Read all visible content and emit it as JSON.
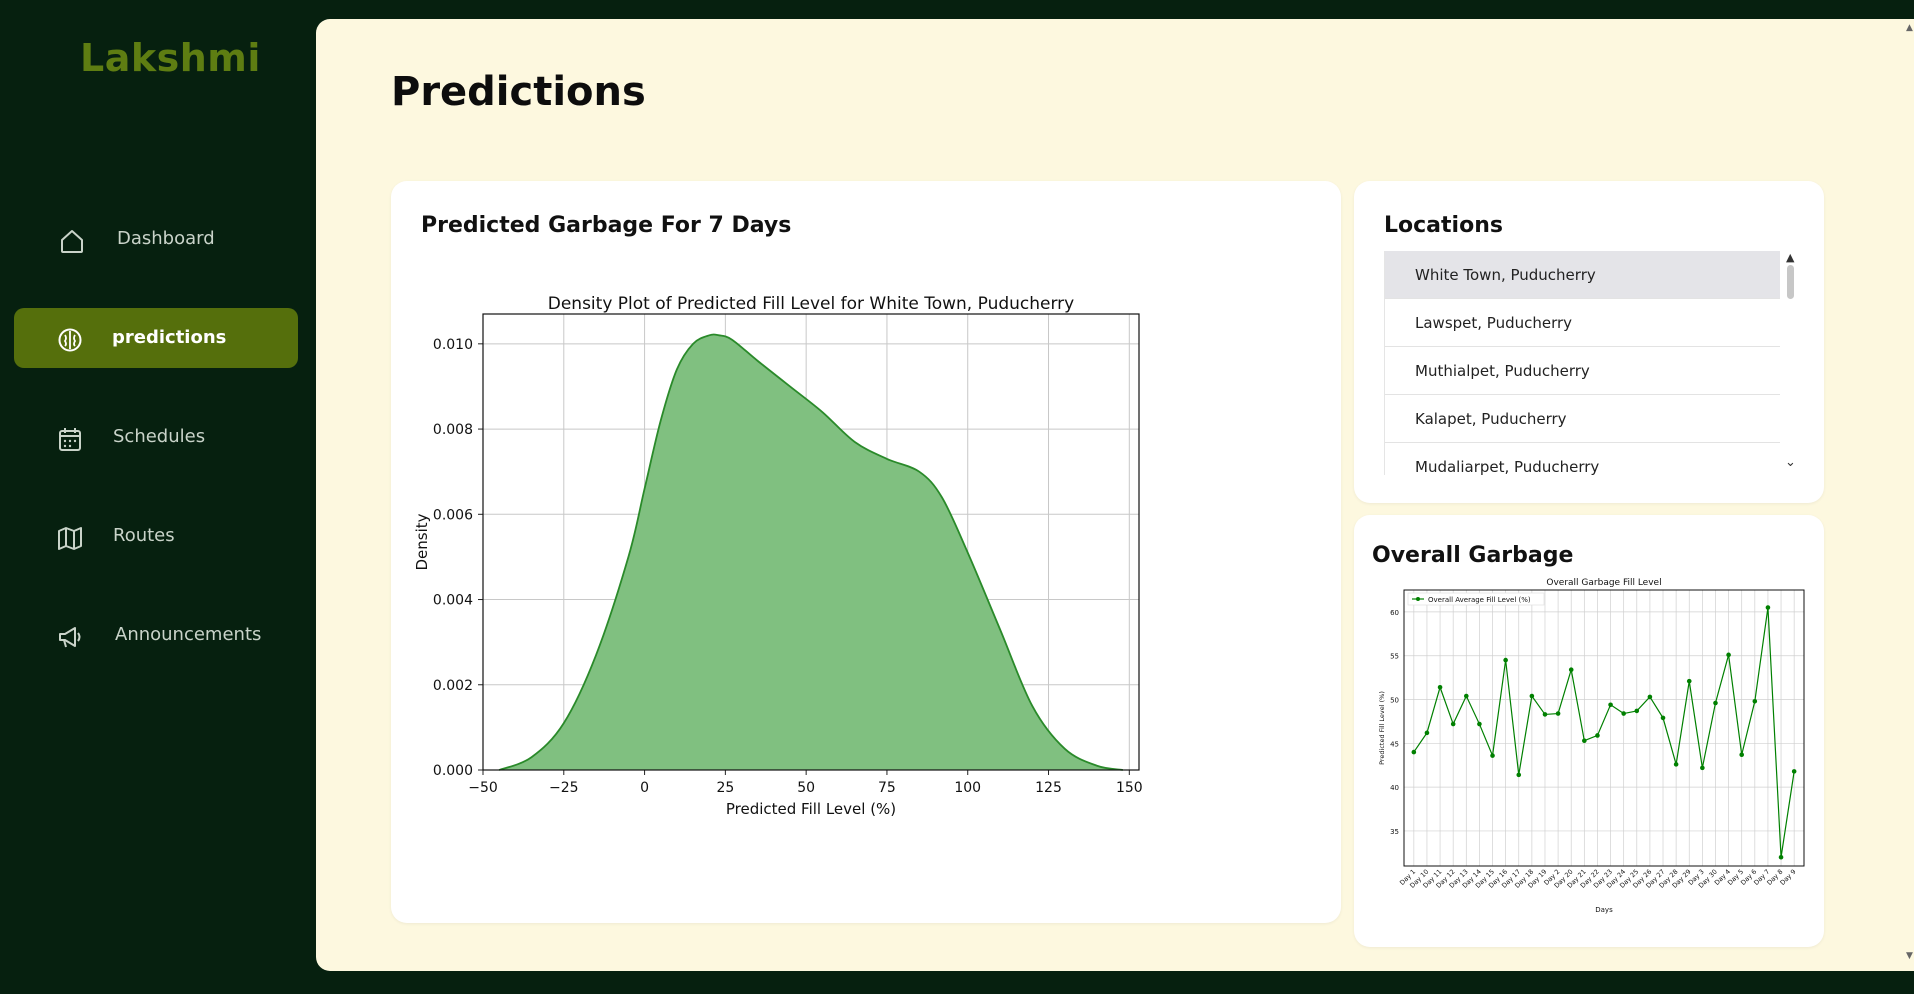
{
  "app": {
    "name": "Lakshmi"
  },
  "sidebar": {
    "items": [
      {
        "label": "Dashboard",
        "icon": "home-icon",
        "active": false
      },
      {
        "label": "predictions",
        "icon": "brain-icon",
        "active": true
      },
      {
        "label": "Schedules",
        "icon": "calendar-icon",
        "active": false
      },
      {
        "label": "Routes",
        "icon": "map-icon",
        "active": false
      },
      {
        "label": "Announcements",
        "icon": "megaphone-icon",
        "active": false
      }
    ]
  },
  "page": {
    "title": "Predictions"
  },
  "colors": {
    "sidebar_bg": "#06200f",
    "accent": "#556f0c",
    "logo": "#5e7d12",
    "main_bg": "#fdf8df",
    "density_fill": "#80c080",
    "density_line": "#2a8a2a",
    "line_green": "#008000"
  },
  "density_card": {
    "title": "Predicted Garbage For 7 Days"
  },
  "locations": {
    "title": "Locations",
    "items": [
      "White Town, Puducherry",
      "Lawspet, Puducherry",
      "Muthialpet, Puducherry",
      "Kalapet, Puducherry",
      "Mudaliarpet, Puducherry"
    ],
    "selected": "White Town, Puducherry"
  },
  "overall_card": {
    "title": "Overall Garbage"
  },
  "chart_data": [
    {
      "type": "area",
      "title": "Density Plot of Predicted Fill Level for White Town, Puducherry",
      "xlabel": "Predicted Fill Level (%)",
      "ylabel": "Density",
      "xlim": [
        -50,
        153
      ],
      "ylim": [
        0,
        0.0107
      ],
      "xticks": [
        -50,
        -25,
        0,
        25,
        50,
        75,
        100,
        125,
        150
      ],
      "xtick_labels": [
        "−50",
        "−25",
        "0",
        "25",
        "50",
        "75",
        "100",
        "125",
        "150"
      ],
      "yticks": [
        0,
        0.002,
        0.004,
        0.006,
        0.008,
        0.01
      ],
      "ytick_labels": [
        "0.000",
        "0.002",
        "0.004",
        "0.006",
        "0.008",
        "0.010"
      ],
      "grid": true,
      "x": [
        -45,
        -35,
        -25,
        -15,
        -5,
        0,
        5,
        10,
        15,
        20,
        23,
        27,
        35,
        45,
        55,
        65,
        75,
        85,
        92,
        100,
        110,
        120,
        130,
        140,
        148
      ],
      "y": [
        0.0,
        0.0003,
        0.0011,
        0.0027,
        0.005,
        0.0066,
        0.0082,
        0.0094,
        0.01,
        0.0102,
        0.0102,
        0.0101,
        0.0096,
        0.009,
        0.0084,
        0.0077,
        0.0073,
        0.007,
        0.0064,
        0.0051,
        0.0033,
        0.0015,
        0.0005,
        0.0001,
        0.0
      ]
    },
    {
      "type": "line",
      "title": "Overall Garbage Fill Level",
      "xlabel": "Days",
      "ylabel": "Predicted Fill Level (%)",
      "ylim": [
        31,
        62.5
      ],
      "yticks": [
        35,
        40,
        45,
        50,
        55,
        60
      ],
      "grid": true,
      "legend_position": "top-left",
      "categories": [
        "Day 1",
        "Day 10",
        "Day 11",
        "Day 12",
        "Day 13",
        "Day 14",
        "Day 15",
        "Day 16",
        "Day 17",
        "Day 18",
        "Day 19",
        "Day 2",
        "Day 20",
        "Day 21",
        "Day 22",
        "Day 23",
        "Day 24",
        "Day 25",
        "Day 26",
        "Day 27",
        "Day 28",
        "Day 29",
        "Day 3",
        "Day 30",
        "Day 4",
        "Day 5",
        "Day 6",
        "Day 7",
        "Day 8",
        "Day 9"
      ],
      "series": [
        {
          "name": "Overall Average Fill Level (%)",
          "values": [
            44.0,
            46.2,
            51.4,
            47.2,
            50.4,
            47.2,
            43.6,
            54.5,
            41.4,
            50.4,
            48.3,
            48.4,
            53.4,
            45.3,
            45.9,
            49.4,
            48.4,
            48.7,
            50.3,
            47.9,
            42.6,
            52.1,
            42.2,
            49.6,
            55.1,
            43.7,
            49.8,
            60.5,
            32.0,
            41.8
          ]
        }
      ]
    }
  ]
}
